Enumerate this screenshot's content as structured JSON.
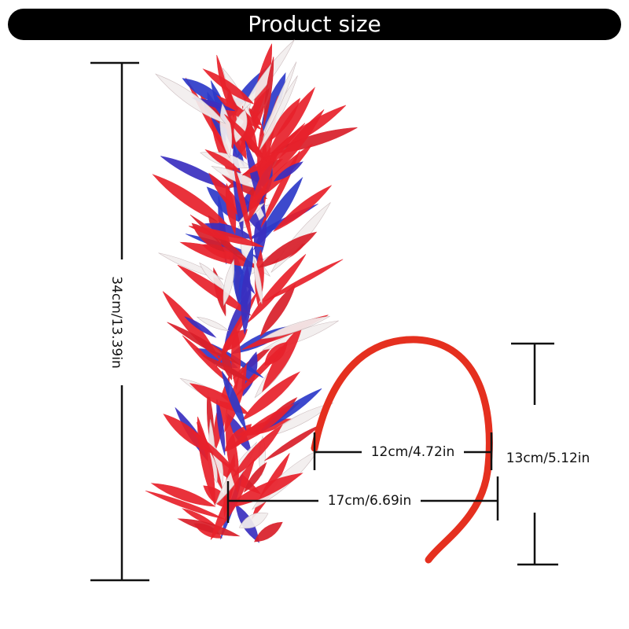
{
  "header": {
    "title": "Product size"
  },
  "dimensions": {
    "height": "34cm/13.39in",
    "band_width": "12cm/4.72in",
    "band_height": "13cm/5.12in",
    "total_width": "17cm/6.69in"
  }
}
